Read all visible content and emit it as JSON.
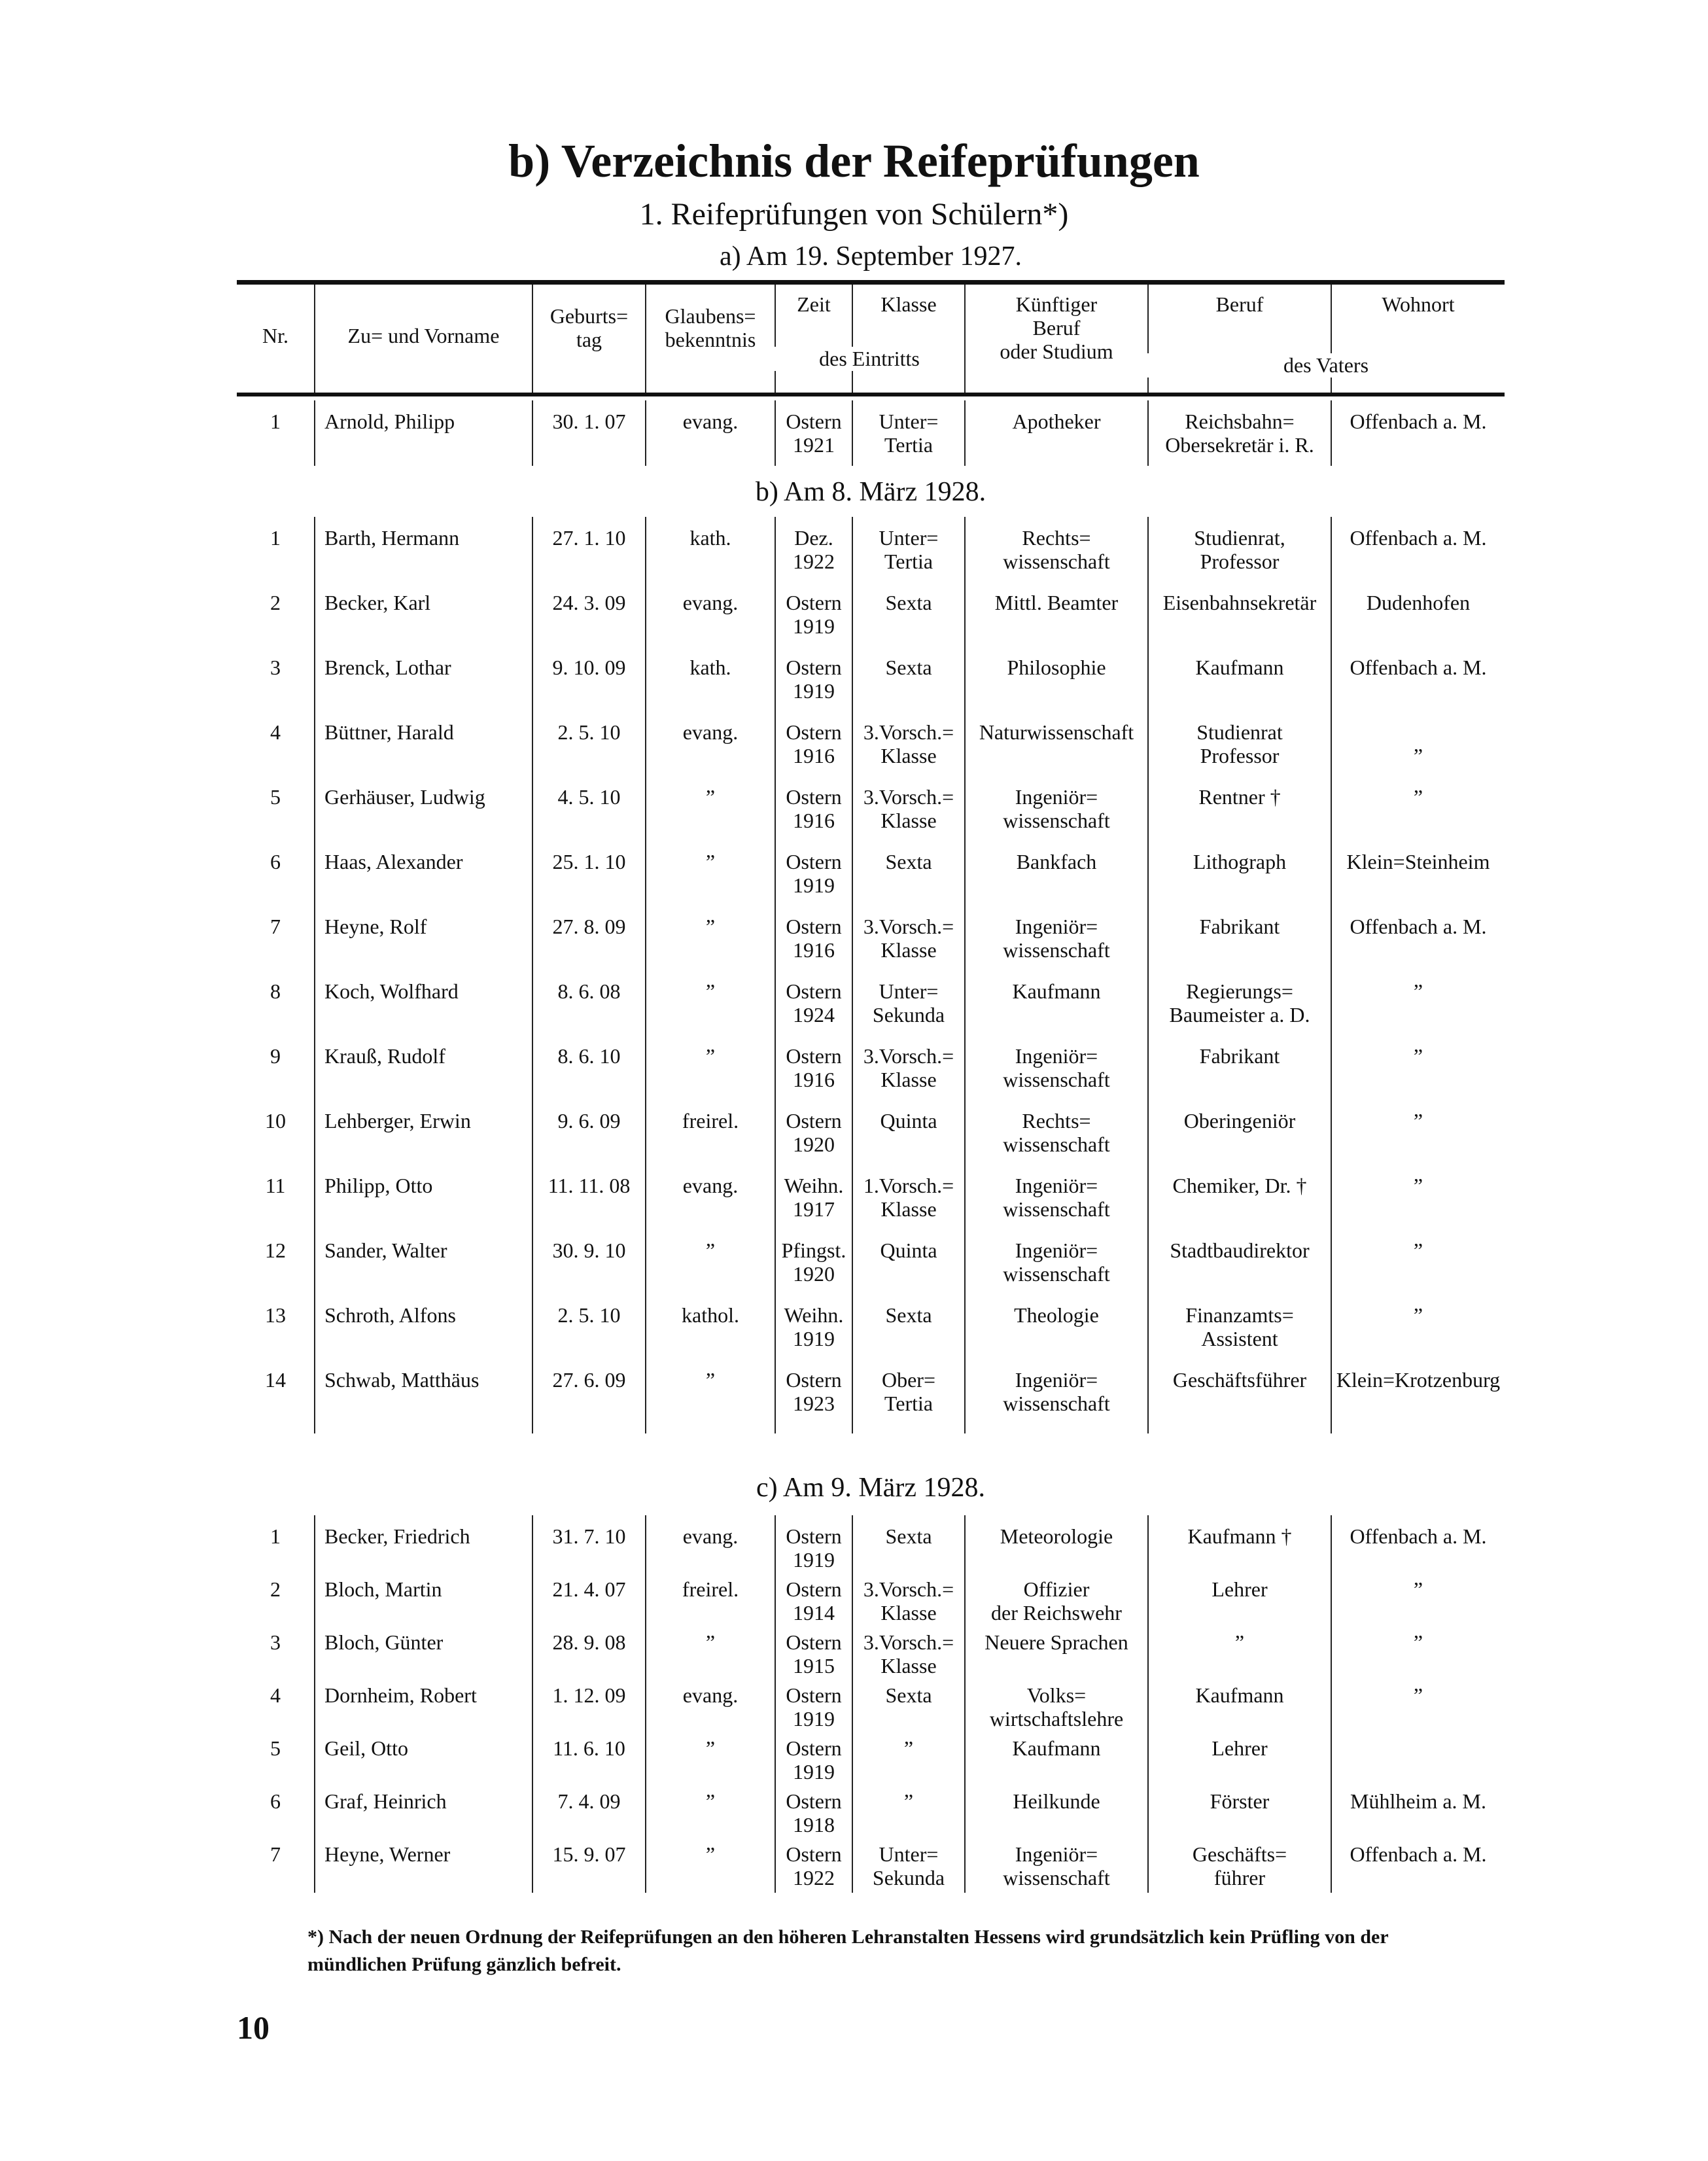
{
  "heading": {
    "title": "b) Verzeichnis der Reifeprüfungen",
    "subtitle": "1. Reifeprüfungen von Schülern*)",
    "section_a": "a) Am 19. September 1927.",
    "section_b": "b) Am 8. März 1928.",
    "section_c": "c) Am 9. März 1928."
  },
  "columns": [
    "Nr.",
    "Zu= und Vorname",
    "Geburts=\ntag",
    "Glaubens=\nbekenntnis",
    "Zeit",
    "Klasse",
    "Künftiger\nBeruf\noder Studium",
    "Beruf",
    "Wohnort"
  ],
  "column_groups": {
    "eintritt": "des Eintritts",
    "vater": "des Vaters"
  },
  "section_a_rows": [
    [
      "1",
      "Arnold, Philipp",
      "30. 1. 07",
      "evang.",
      "Ostern\n1921",
      "Unter=\nTertia",
      "Apotheker",
      "Reichsbahn=\nObersekretär i. R.",
      "Offenbach a. M."
    ]
  ],
  "section_b_rows": [
    [
      "1",
      "Barth, Hermann",
      "27. 1. 10",
      "kath.",
      "Dez.\n1922",
      "Unter=\nTertia",
      "Rechts=\nwissenschaft",
      "Studienrat,\nProfessor",
      "Offenbach a. M."
    ],
    [
      "2",
      "Becker, Karl",
      "24. 3. 09",
      "evang.",
      "Ostern\n1919",
      "Sexta",
      "Mittl. Beamter",
      "Eisenbahnsekretär",
      "Dudenhofen"
    ],
    [
      "3",
      "Brenck, Lothar",
      "9. 10. 09",
      "kath.",
      "Ostern\n1919",
      "Sexta",
      "Philosophie",
      "Kaufmann",
      "Offenbach a. M."
    ],
    [
      "4",
      "Büttner, Harald",
      "2. 5. 10",
      "evang.",
      "Ostern\n1916",
      "3.Vorsch.=\nKlasse",
      "Naturwissenschaft",
      "Studienrat\nProfessor",
      "\n”"
    ],
    [
      "5",
      "Gerhäuser, Ludwig",
      "4. 5. 10",
      "”",
      "Ostern\n1916",
      "3.Vorsch.=\nKlasse",
      "Ingeniör=\nwissenschaft",
      "Rentner †",
      "”"
    ],
    [
      "6",
      "Haas, Alexander",
      "25. 1. 10",
      "”",
      "Ostern\n1919",
      "Sexta",
      "Bankfach",
      "Lithograph",
      "Klein=Steinheim"
    ],
    [
      "7",
      "Heyne, Rolf",
      "27. 8. 09",
      "”",
      "Ostern\n1916",
      "3.Vorsch.=\nKlasse",
      "Ingeniör=\nwissenschaft",
      "Fabrikant",
      "Offenbach a. M."
    ],
    [
      "8",
      "Koch, Wolfhard",
      "8. 6. 08",
      "”",
      "Ostern\n1924",
      "Unter=\nSekunda",
      "Kaufmann",
      "Regierungs=\nBaumeister a. D.",
      "”"
    ],
    [
      "9",
      "Krauß, Rudolf",
      "8. 6. 10",
      "”",
      "Ostern\n1916",
      "3.Vorsch.=\nKlasse",
      "Ingeniör=\nwissenschaft",
      "Fabrikant",
      "”"
    ],
    [
      "10",
      "Lehberger, Erwin",
      "9. 6. 09",
      "freirel.",
      "Ostern\n1920",
      "Quinta",
      "Rechts=\nwissenschaft",
      "Oberingeniör",
      "”"
    ],
    [
      "11",
      "Philipp, Otto",
      "11. 11. 08",
      "evang.",
      "Weihn.\n1917",
      "1.Vorsch.=\nKlasse",
      "Ingeniör=\nwissenschaft",
      "Chemiker, Dr. †",
      "”"
    ],
    [
      "12",
      "Sander, Walter",
      "30. 9. 10",
      "”",
      "Pfingst.\n1920",
      "Quinta",
      "Ingeniör=\nwissenschaft",
      "Stadtbaudirektor",
      "”"
    ],
    [
      "13",
      "Schroth, Alfons",
      "2. 5. 10",
      "kathol.",
      "Weihn.\n1919",
      "Sexta",
      "Theologie",
      "Finanzamts=\nAssistent",
      "”"
    ],
    [
      "14",
      "Schwab, Matthäus",
      "27. 6. 09",
      "”",
      "Ostern\n1923",
      "Ober=\nTertia",
      "Ingeniör=\nwissenschaft",
      "Geschäftsführer",
      "Klein=Krotzenburg"
    ]
  ],
  "section_c_rows": [
    [
      "1",
      "Becker, Friedrich",
      "31. 7. 10",
      "evang.",
      "Ostern\n1919",
      "Sexta",
      "Meteorologie",
      "Kaufmann †",
      "Offenbach a. M."
    ],
    [
      "2",
      "Bloch, Martin",
      "21. 4. 07",
      "freirel.",
      "Ostern\n1914",
      "3.Vorsch.=\nKlasse",
      "Offizier\nder Reichswehr",
      "Lehrer",
      "”"
    ],
    [
      "3",
      "Bloch, Günter",
      "28. 9. 08",
      "”",
      "Ostern\n1915",
      "3.Vorsch.=\nKlasse",
      "Neuere Sprachen",
      "”",
      "”"
    ],
    [
      "4",
      "Dornheim, Robert",
      "1. 12. 09",
      "evang.",
      "Ostern\n1919",
      "Sexta",
      "Volks=\nwirtschaftslehre",
      "Kaufmann",
      "”"
    ],
    [
      "5",
      "Geil, Otto",
      "11. 6. 10",
      "”",
      "Ostern\n1919",
      "”",
      "Kaufmann",
      "Lehrer",
      ""
    ],
    [
      "6",
      "Graf, Heinrich",
      "7. 4. 09",
      "”",
      "Ostern\n1918",
      "”",
      "Heilkunde",
      "Förster",
      "Mühlheim a. M."
    ],
    [
      "7",
      "Heyne, Werner",
      "15. 9. 07",
      "”",
      "Ostern\n1922",
      "Unter=\nSekunda",
      "Ingeniör=\nwissenschaft",
      "Geschäfts=\nführer",
      "Offenbach a. M."
    ]
  ],
  "footnote": "*) Nach der neuen Ordnung der Reifeprüfungen an den höheren Lehranstalten Hessens wird grundsätzlich kein Prüfling von der mündlichen Prüfung gänzlich befreit.",
  "page_number": "10"
}
